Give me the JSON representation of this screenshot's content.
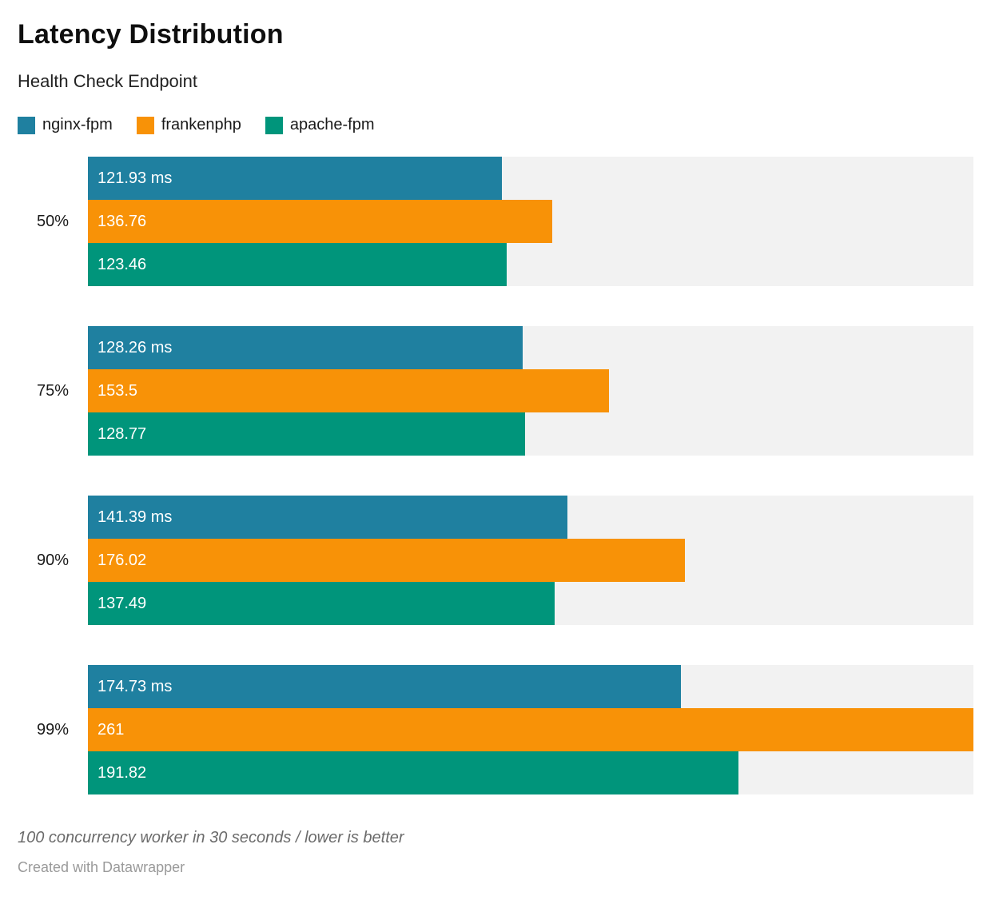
{
  "header": {
    "title": "Latency Distribution",
    "subtitle": "Health Check Endpoint"
  },
  "chart_data": {
    "type": "bar",
    "orientation": "horizontal",
    "title": "Latency Distribution",
    "subtitle": "Health Check Endpoint",
    "categories": [
      "50%",
      "75%",
      "90%",
      "99%"
    ],
    "series": [
      {
        "name": "nginx-fpm",
        "color": "#1f80a0",
        "values": [
          121.93,
          128.26,
          141.39,
          174.73
        ],
        "labels": [
          "121.93 ms",
          "128.26 ms",
          "141.39 ms",
          "174.73 ms"
        ]
      },
      {
        "name": "frankenphp",
        "color": "#f89207",
        "values": [
          136.76,
          153.5,
          176.02,
          261
        ],
        "labels": [
          "136.76",
          "153.5",
          "176.02",
          "261"
        ]
      },
      {
        "name": "apache-fpm",
        "color": "#00957b",
        "values": [
          123.46,
          128.77,
          137.49,
          191.82
        ],
        "labels": [
          "123.46",
          "128.77",
          "137.49",
          "191.82"
        ]
      }
    ],
    "value_unit": "ms",
    "xlim": [
      0,
      261
    ],
    "grid": false,
    "legend_position": "top",
    "track_color": "#f2f2f2"
  },
  "footer": {
    "note": "100 concurrency worker in 30 seconds / lower is better",
    "attribution": "Created with Datawrapper"
  }
}
